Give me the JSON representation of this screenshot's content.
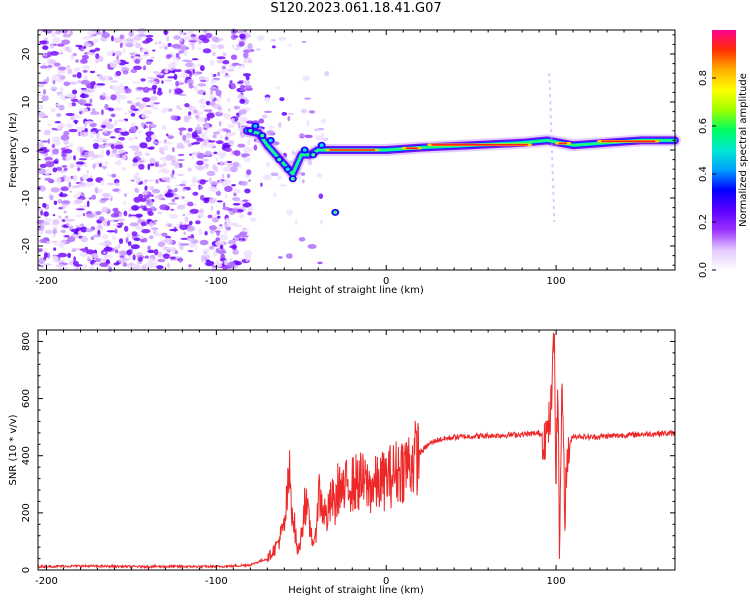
{
  "title": "S120.2023.061.18.41.G07",
  "chart_data": [
    {
      "type": "heatmap",
      "xlabel": "Height of straight line (km)",
      "ylabel": "Frequency (Hz)",
      "xlim": [
        -205,
        170
      ],
      "ylim": [
        -25,
        25
      ],
      "xticks": [
        -200,
        -100,
        0,
        100
      ],
      "yticks": [
        -20,
        -10,
        0,
        10,
        20
      ],
      "colorbar": {
        "label": "Normalized spectral amplitude",
        "range": [
          0,
          1
        ],
        "ticks": [
          "0.0",
          "0.2",
          "0.4",
          "0.6",
          "0.8"
        ],
        "colors": [
          "#ffffff",
          "#e4c8ff",
          "#9a30ff",
          "#5a00ff",
          "#0000ff",
          "#00a0ff",
          "#00e8d0",
          "#00ff60",
          "#a0ff00",
          "#ffff00",
          "#ffb000",
          "#ff3000",
          "#ff0090"
        ]
      },
      "ridge": [
        {
          "x": -82,
          "f": 4
        },
        {
          "x": -75,
          "f": 3.5
        },
        {
          "x": -70,
          "f": 1
        },
        {
          "x": -65,
          "f": -1
        },
        {
          "x": -60,
          "f": -3
        },
        {
          "x": -55,
          "f": -5
        },
        {
          "x": -50,
          "f": -1
        },
        {
          "x": -45,
          "f": -1
        },
        {
          "x": -40,
          "f": 0
        },
        {
          "x": -30,
          "f": 0
        },
        {
          "x": -20,
          "f": 0
        },
        {
          "x": 0,
          "f": 0
        },
        {
          "x": 20,
          "f": 0.5
        },
        {
          "x": 50,
          "f": 1
        },
        {
          "x": 80,
          "f": 1.5
        },
        {
          "x": 95,
          "f": 2
        },
        {
          "x": 110,
          "f": 1
        },
        {
          "x": 130,
          "f": 1.5
        },
        {
          "x": 150,
          "f": 2
        },
        {
          "x": 170,
          "f": 2
        }
      ]
    },
    {
      "type": "line",
      "xlabel": "Height of straight line (km)",
      "ylabel": "SNR (10 * v/v)",
      "xlim": [
        -205,
        170
      ],
      "ylim": [
        0,
        840
      ],
      "xticks": [
        -200,
        -100,
        0,
        100
      ],
      "yticks": [
        0,
        200,
        400,
        600,
        800
      ],
      "color": "#ee2828",
      "series": [
        {
          "x": [
            -205,
            -180,
            -150,
            -120,
            -100,
            -90,
            -80,
            -70,
            -65,
            -60,
            -57,
            -55,
            -52,
            -50,
            -48,
            -45,
            -42,
            -40,
            -38,
            -35,
            -32,
            -30,
            -28,
            -25,
            -22,
            -20,
            -15,
            -10,
            -5,
            0,
            5,
            10,
            15,
            20,
            25,
            30,
            40,
            50,
            60,
            70,
            80,
            90,
            95,
            97,
            98,
            99,
            100,
            101,
            102,
            103,
            104,
            105,
            107,
            110,
            120,
            140,
            160,
            170
          ],
          "y": [
            12,
            14,
            12,
            12,
            12,
            14,
            18,
            40,
            80,
            150,
            330,
            200,
            60,
            120,
            250,
            150,
            80,
            280,
            230,
            180,
            250,
            220,
            300,
            260,
            320,
            300,
            310,
            290,
            300,
            320,
            340,
            360,
            380,
            410,
            440,
            455,
            465,
            468,
            470,
            472,
            475,
            478,
            470,
            560,
            700,
            820,
            300,
            700,
            40,
            500,
            650,
            200,
            420,
            470,
            465,
            472,
            478,
            478
          ]
        }
      ]
    }
  ]
}
